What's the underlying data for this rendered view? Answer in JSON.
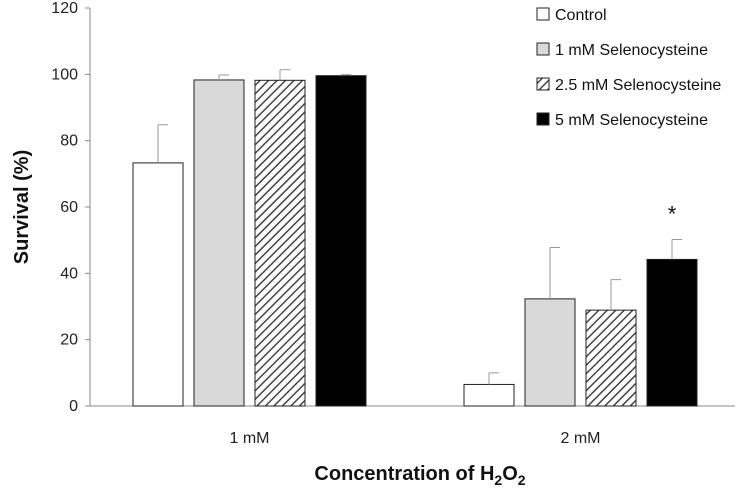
{
  "chart_data": {
    "type": "bar",
    "categories": [
      "1 mM",
      "2 mM"
    ],
    "series": [
      {
        "name": "Control",
        "values": [
          73.3,
          6.5
        ],
        "errors": [
          11.5,
          3.5
        ],
        "color": "#ffffff",
        "pattern": "none"
      },
      {
        "name": "1 mM Selenocysteine",
        "values": [
          98.3,
          32.3
        ],
        "errors": [
          1.5,
          15.5
        ],
        "color": "#d9d9d9",
        "pattern": "none"
      },
      {
        "name": "2.5 mM Selenocysteine",
        "values": [
          98.2,
          28.9
        ],
        "errors": [
          3.2,
          9.2
        ],
        "color": "#555555",
        "pattern": "hatch"
      },
      {
        "name": "5 mM Selenocysteine",
        "values": [
          99.6,
          44.2
        ],
        "errors": [
          0.3,
          6.0
        ],
        "color": "#000000",
        "pattern": "none"
      }
    ],
    "title": "",
    "ylabel": "Survival (%)",
    "xlabel": {
      "prefix": "Concentration of H",
      "sub1": "2",
      "mid": "O",
      "sub2": "2"
    },
    "ylim": [
      0,
      120
    ],
    "yticks": [
      "0",
      "20",
      "40",
      "60",
      "80",
      "100",
      "120"
    ],
    "grid": false,
    "legend_position": "top-right",
    "annotations": [
      {
        "text": "*",
        "category": "2 mM",
        "series": "5 mM Selenocysteine"
      }
    ]
  }
}
